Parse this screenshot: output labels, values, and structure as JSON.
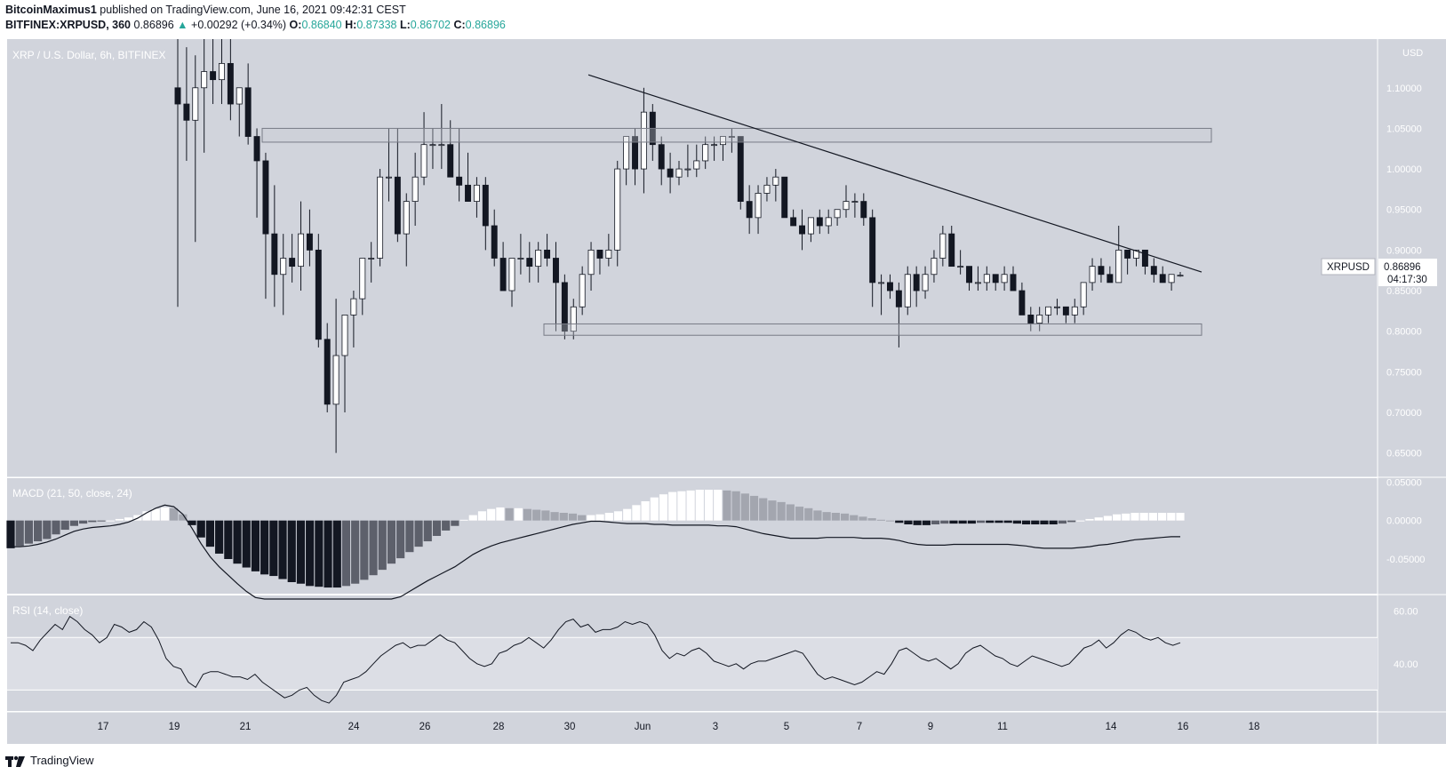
{
  "header": {
    "author": "BitcoinMaximus1",
    "published": "published on TradingView.com, June 16, 2021 09:42:31 CEST",
    "symbol_line": "BITFINEX:XRPUSD, 360",
    "last": "0.86896",
    "change_arrow": "▲",
    "change": "+0.00292 (+0.34%)",
    "o_label": "O:",
    "o": "0.86840",
    "h_label": "H:",
    "h": "0.87338",
    "l_label": "L:",
    "l": "0.86702",
    "c_label": "C:",
    "c": "0.86896"
  },
  "panes": {
    "price_title": "XRP / U.S. Dollar, 6h, BITFINEX",
    "macd_title": "MACD (21, 50, close, 24)",
    "rsi_title": "RSI (14, close)"
  },
  "price_scale": {
    "currency": "USD",
    "ticks": [
      "1.10000",
      "1.05000",
      "1.00000",
      "0.95000",
      "0.90000",
      "0.85000",
      "0.80000",
      "0.75000",
      "0.70000",
      "0.65000"
    ],
    "last_label": "0.86896",
    "symbol_tag": "XRPUSD",
    "countdown": "04:17:30"
  },
  "macd_scale": {
    "ticks": [
      "0.05000",
      "0.00000",
      "-0.05000"
    ]
  },
  "rsi_scale": {
    "ticks": [
      "60.00",
      "40.00"
    ]
  },
  "time_axis": [
    "17",
    "19",
    "21",
    "24",
    "26",
    "28",
    "30",
    "Jun",
    "3",
    "5",
    "7",
    "9",
    "11",
    "14",
    "16",
    "18"
  ],
  "footer": {
    "brand": "TradingView"
  },
  "colors": {
    "bg": "#d1d4dc",
    "up_candle": "#ffffff",
    "down_candle": "#131722",
    "accent_up": "#26a69a"
  },
  "chart_data": [
    {
      "type": "candlestick",
      "title": "XRP / U.S. Dollar, 6h, BITFINEX",
      "ylabel": "USD",
      "ylim": [
        0.62,
        1.16
      ],
      "x_labels": [
        "17",
        "19",
        "21",
        "24",
        "26",
        "28",
        "30",
        "Jun",
        "3",
        "5",
        "7",
        "9",
        "11",
        "14",
        "16",
        "18"
      ],
      "ohlc": [
        [
          1.1,
          1.16,
          0.83,
          1.08
        ],
        [
          1.08,
          1.15,
          1.01,
          1.06
        ],
        [
          1.06,
          1.14,
          0.91,
          1.1
        ],
        [
          1.1,
          1.16,
          1.02,
          1.12
        ],
        [
          1.12,
          1.16,
          1.08,
          1.11
        ],
        [
          1.11,
          1.16,
          1.08,
          1.13
        ],
        [
          1.13,
          1.16,
          1.06,
          1.08
        ],
        [
          1.08,
          1.1,
          1.04,
          1.1
        ],
        [
          1.1,
          1.13,
          1.03,
          1.04
        ],
        [
          1.04,
          1.05,
          0.94,
          1.01
        ],
        [
          1.01,
          1.02,
          0.84,
          0.92
        ],
        [
          0.92,
          0.98,
          0.83,
          0.87
        ],
        [
          0.87,
          0.92,
          0.82,
          0.89
        ],
        [
          0.89,
          0.92,
          0.86,
          0.88
        ],
        [
          0.88,
          0.96,
          0.85,
          0.92
        ],
        [
          0.92,
          0.95,
          0.88,
          0.9
        ],
        [
          0.9,
          0.92,
          0.78,
          0.79
        ],
        [
          0.79,
          0.81,
          0.7,
          0.71
        ],
        [
          0.71,
          0.84,
          0.65,
          0.77
        ],
        [
          0.77,
          0.82,
          0.7,
          0.82
        ],
        [
          0.82,
          0.85,
          0.78,
          0.84
        ],
        [
          0.84,
          0.89,
          0.82,
          0.89
        ],
        [
          0.89,
          0.91,
          0.86,
          0.89
        ],
        [
          0.89,
          1.0,
          0.88,
          0.99
        ],
        [
          0.99,
          1.05,
          0.96,
          0.99
        ],
        [
          0.99,
          1.05,
          0.91,
          0.92
        ],
        [
          0.92,
          0.97,
          0.88,
          0.96
        ],
        [
          0.96,
          1.02,
          0.93,
          0.99
        ],
        [
          0.99,
          1.07,
          0.98,
          1.03
        ],
        [
          1.03,
          1.05,
          1.0,
          1.03
        ],
        [
          1.03,
          1.08,
          1.0,
          1.03
        ],
        [
          1.03,
          1.06,
          0.99,
          0.99
        ],
        [
          0.99,
          1.05,
          0.96,
          0.98
        ],
        [
          0.98,
          1.02,
          0.96,
          0.96
        ],
        [
          0.96,
          0.99,
          0.94,
          0.98
        ],
        [
          0.98,
          0.99,
          0.9,
          0.93
        ],
        [
          0.93,
          0.95,
          0.88,
          0.89
        ],
        [
          0.89,
          0.91,
          0.85,
          0.85
        ],
        [
          0.85,
          0.89,
          0.83,
          0.89
        ],
        [
          0.89,
          0.92,
          0.87,
          0.89
        ],
        [
          0.89,
          0.91,
          0.86,
          0.88
        ],
        [
          0.88,
          0.91,
          0.86,
          0.9
        ],
        [
          0.9,
          0.92,
          0.88,
          0.89
        ],
        [
          0.89,
          0.91,
          0.8,
          0.86
        ],
        [
          0.86,
          0.87,
          0.79,
          0.8
        ],
        [
          0.8,
          0.84,
          0.79,
          0.83
        ],
        [
          0.83,
          0.88,
          0.82,
          0.87
        ],
        [
          0.87,
          0.91,
          0.85,
          0.9
        ],
        [
          0.9,
          0.9,
          0.87,
          0.89
        ],
        [
          0.89,
          0.92,
          0.88,
          0.9
        ],
        [
          0.9,
          1.01,
          0.88,
          1.0
        ],
        [
          1.0,
          1.04,
          0.98,
          1.04
        ],
        [
          1.04,
          1.05,
          0.98,
          1.0
        ],
        [
          1.0,
          1.1,
          0.97,
          1.07
        ],
        [
          1.07,
          1.08,
          1.01,
          1.03
        ],
        [
          1.03,
          1.04,
          0.98,
          1.0
        ],
        [
          1.0,
          1.02,
          0.97,
          0.99
        ],
        [
          0.99,
          1.01,
          0.98,
          1.0
        ],
        [
          1.0,
          1.03,
          0.99,
          1.0
        ],
        [
          1.0,
          1.03,
          0.99,
          1.01
        ],
        [
          1.01,
          1.04,
          1.0,
          1.03
        ],
        [
          1.03,
          1.04,
          1.01,
          1.03
        ],
        [
          1.03,
          1.04,
          1.01,
          1.04
        ],
        [
          1.04,
          1.05,
          1.02,
          1.04
        ],
        [
          1.04,
          1.04,
          0.95,
          0.96
        ],
        [
          0.96,
          0.98,
          0.92,
          0.94
        ],
        [
          0.94,
          0.98,
          0.92,
          0.97
        ],
        [
          0.97,
          0.99,
          0.96,
          0.98
        ],
        [
          0.98,
          1.0,
          0.96,
          0.99
        ],
        [
          0.99,
          0.99,
          0.94,
          0.94
        ],
        [
          0.94,
          0.95,
          0.93,
          0.93
        ],
        [
          0.93,
          0.95,
          0.9,
          0.92
        ],
        [
          0.92,
          0.94,
          0.91,
          0.94
        ],
        [
          0.94,
          0.95,
          0.92,
          0.93
        ],
        [
          0.93,
          0.95,
          0.92,
          0.94
        ],
        [
          0.94,
          0.95,
          0.93,
          0.95
        ],
        [
          0.95,
          0.98,
          0.94,
          0.96
        ],
        [
          0.96,
          0.97,
          0.94,
          0.96
        ],
        [
          0.96,
          0.97,
          0.93,
          0.94
        ],
        [
          0.94,
          0.95,
          0.83,
          0.86
        ],
        [
          0.86,
          0.87,
          0.82,
          0.86
        ],
        [
          0.86,
          0.87,
          0.84,
          0.85
        ],
        [
          0.85,
          0.86,
          0.78,
          0.83
        ],
        [
          0.83,
          0.88,
          0.82,
          0.87
        ],
        [
          0.87,
          0.88,
          0.83,
          0.85
        ],
        [
          0.85,
          0.88,
          0.84,
          0.87
        ],
        [
          0.87,
          0.9,
          0.86,
          0.89
        ],
        [
          0.89,
          0.93,
          0.88,
          0.92
        ],
        [
          0.92,
          0.93,
          0.88,
          0.88
        ],
        [
          0.88,
          0.9,
          0.87,
          0.88
        ],
        [
          0.88,
          0.88,
          0.85,
          0.86
        ],
        [
          0.86,
          0.88,
          0.85,
          0.86
        ],
        [
          0.86,
          0.88,
          0.85,
          0.87
        ],
        [
          0.87,
          0.87,
          0.85,
          0.86
        ],
        [
          0.86,
          0.88,
          0.85,
          0.87
        ],
        [
          0.87,
          0.88,
          0.85,
          0.85
        ],
        [
          0.85,
          0.86,
          0.82,
          0.82
        ],
        [
          0.82,
          0.83,
          0.8,
          0.81
        ],
        [
          0.81,
          0.83,
          0.8,
          0.82
        ],
        [
          0.82,
          0.83,
          0.81,
          0.83
        ],
        [
          0.83,
          0.84,
          0.82,
          0.83
        ],
        [
          0.83,
          0.83,
          0.81,
          0.82
        ],
        [
          0.82,
          0.84,
          0.81,
          0.83
        ],
        [
          0.83,
          0.86,
          0.82,
          0.86
        ],
        [
          0.86,
          0.89,
          0.85,
          0.88
        ],
        [
          0.88,
          0.89,
          0.86,
          0.87
        ],
        [
          0.87,
          0.88,
          0.86,
          0.86
        ],
        [
          0.86,
          0.93,
          0.86,
          0.9
        ],
        [
          0.9,
          0.9,
          0.87,
          0.89
        ],
        [
          0.89,
          0.9,
          0.88,
          0.9
        ],
        [
          0.9,
          0.9,
          0.87,
          0.88
        ],
        [
          0.88,
          0.89,
          0.86,
          0.87
        ],
        [
          0.87,
          0.88,
          0.86,
          0.86
        ],
        [
          0.86,
          0.87,
          0.85,
          0.87
        ],
        [
          0.868,
          0.873,
          0.867,
          0.869
        ]
      ],
      "annotations": {
        "resistance_zone": [
          1.033,
          1.05
        ],
        "support_zone": [
          0.795,
          0.809
        ],
        "trendline": [
          [
            1.116,
            0.0
          ],
          [
            0.873,
            1.0
          ]
        ]
      }
    },
    {
      "type": "bar",
      "title": "MACD (21, 50, close, 24)",
      "ylim": [
        -0.095,
        0.055
      ],
      "histogram": [
        -0.036,
        -0.033,
        -0.03,
        -0.027,
        -0.024,
        -0.018,
        -0.012,
        -0.007,
        -0.004,
        -0.002,
        -0.001,
        0.0,
        0.002,
        0.004,
        0.007,
        0.012,
        0.015,
        0.017,
        0.016,
        0.008,
        -0.006,
        -0.022,
        -0.034,
        -0.043,
        -0.05,
        -0.056,
        -0.061,
        -0.066,
        -0.07,
        -0.072,
        -0.076,
        -0.08,
        -0.082,
        -0.085,
        -0.086,
        -0.087,
        -0.087,
        -0.085,
        -0.082,
        -0.077,
        -0.071,
        -0.064,
        -0.056,
        -0.049,
        -0.041,
        -0.034,
        -0.027,
        -0.02,
        -0.013,
        -0.007,
        0.001,
        0.007,
        0.012,
        0.015,
        0.017,
        0.016,
        0.016,
        0.015,
        0.014,
        0.013,
        0.011,
        0.01,
        0.009,
        0.007,
        0.007,
        0.008,
        0.01,
        0.012,
        0.015,
        0.02,
        0.025,
        0.03,
        0.034,
        0.037,
        0.038,
        0.039,
        0.04,
        0.04,
        0.04,
        0.039,
        0.038,
        0.035,
        0.032,
        0.029,
        0.026,
        0.024,
        0.021,
        0.018,
        0.016,
        0.013,
        0.011,
        0.01,
        0.009,
        0.007,
        0.005,
        0.003,
        0.001,
        0.0,
        -0.003,
        -0.005,
        -0.006,
        -0.006,
        -0.005,
        -0.004,
        -0.004,
        -0.004,
        -0.004,
        -0.003,
        -0.003,
        -0.003,
        -0.003,
        -0.004,
        -0.005,
        -0.005,
        -0.005,
        -0.005,
        -0.004,
        -0.002,
        0.0,
        0.002,
        0.004,
        0.006,
        0.008,
        0.009,
        0.01,
        0.01,
        0.01,
        0.01,
        0.01,
        0.01
      ],
      "macd_line": [
        -0.034,
        -0.034,
        -0.033,
        -0.031,
        -0.028,
        -0.024,
        -0.019,
        -0.014,
        -0.011,
        -0.009,
        -0.008,
        -0.007,
        -0.005,
        -0.002,
        0.003,
        0.01,
        0.016,
        0.02,
        0.018,
        0.008,
        -0.01,
        -0.03,
        -0.047,
        -0.06,
        -0.071,
        -0.082,
        -0.092,
        -0.1,
        -0.108,
        -0.115,
        -0.122,
        -0.128,
        -0.133,
        -0.138,
        -0.14,
        -0.141,
        -0.14,
        -0.138,
        -0.134,
        -0.128,
        -0.121,
        -0.114,
        -0.106,
        -0.099,
        -0.092,
        -0.085,
        -0.078,
        -0.072,
        -0.066,
        -0.06,
        -0.052,
        -0.044,
        -0.038,
        -0.033,
        -0.029,
        -0.026,
        -0.023,
        -0.02,
        -0.017,
        -0.014,
        -0.011,
        -0.008,
        -0.005,
        -0.003,
        -0.001,
        -0.001,
        -0.002,
        -0.003,
        -0.004,
        -0.004,
        -0.004,
        -0.005,
        -0.005,
        -0.006,
        -0.006,
        -0.006,
        -0.006,
        -0.006,
        -0.007,
        -0.007,
        -0.008,
        -0.011,
        -0.014,
        -0.017,
        -0.019,
        -0.021,
        -0.023,
        -0.023,
        -0.023,
        -0.023,
        -0.022,
        -0.022,
        -0.022,
        -0.022,
        -0.023,
        -0.023,
        -0.023,
        -0.024,
        -0.026,
        -0.029,
        -0.031,
        -0.032,
        -0.032,
        -0.032,
        -0.031,
        -0.031,
        -0.031,
        -0.031,
        -0.031,
        -0.031,
        -0.031,
        -0.032,
        -0.033,
        -0.035,
        -0.036,
        -0.036,
        -0.036,
        -0.036,
        -0.035,
        -0.034,
        -0.032,
        -0.031,
        -0.029,
        -0.027,
        -0.025,
        -0.024,
        -0.023,
        -0.022,
        -0.021,
        -0.021
      ]
    },
    {
      "type": "line",
      "title": "RSI (14, close)",
      "ylim": [
        22,
        66
      ],
      "band": [
        30,
        50
      ],
      "values": [
        48,
        48,
        47,
        45,
        49,
        52,
        55,
        53,
        58,
        56,
        53,
        51,
        48,
        50,
        55,
        54,
        52,
        53,
        56,
        54,
        49,
        42,
        39,
        38,
        33,
        31,
        36,
        37,
        37,
        36,
        35,
        35,
        34,
        36,
        33,
        31,
        29,
        27,
        28,
        30,
        31,
        28,
        26,
        25,
        28,
        33,
        34,
        35,
        37,
        40,
        43,
        45,
        47,
        48,
        46,
        47,
        47,
        49,
        51,
        49,
        48,
        45,
        42,
        40,
        39,
        40,
        44,
        45,
        47,
        48,
        50,
        48,
        46,
        49,
        53,
        56,
        57,
        54,
        55,
        52,
        53,
        53,
        54,
        56,
        55,
        56,
        55,
        51,
        45,
        42,
        44,
        43,
        45,
        46,
        44,
        41,
        40,
        39,
        40,
        38,
        40,
        41,
        41,
        42,
        43,
        44,
        45,
        44,
        40,
        36,
        34,
        35,
        34,
        33,
        32,
        33,
        35,
        37,
        36,
        40,
        45,
        46,
        44,
        42,
        41,
        42,
        40,
        38,
        40,
        44,
        46,
        47,
        45,
        43,
        42,
        40,
        39,
        41,
        43,
        42,
        41,
        40,
        39,
        40,
        43,
        46,
        47,
        49,
        46,
        48,
        51,
        53,
        52,
        50,
        49,
        50,
        48,
        47,
        48
      ]
    }
  ]
}
